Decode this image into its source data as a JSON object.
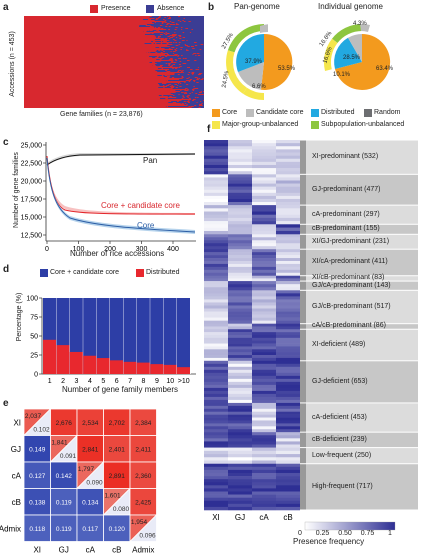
{
  "panel_labels": [
    "a",
    "b",
    "c",
    "d",
    "e",
    "f"
  ],
  "panel_a": {
    "legend": [
      {
        "label": "Presence",
        "color": "#d8282f"
      },
      {
        "label": "Absence",
        "color": "#3b3d94"
      }
    ],
    "ylabel": "Accessions (n = 453)",
    "xlabel": "Gene families (n = 23,876)"
  },
  "panel_b": {
    "titles": [
      "Pan-genome",
      "Individual genome"
    ],
    "pan_labels": [
      "27.5%",
      "24.5%",
      "37.9%",
      "6.6%",
      "53.5%"
    ],
    "ind_labels": [
      "4.3%",
      "16.6%",
      "16.6%",
      "28.5%",
      "10.1%",
      "63.4%"
    ],
    "legend": [
      {
        "label": "Core",
        "color": "#f39a1e"
      },
      {
        "label": "Candidate core",
        "color": "#bdbdbd"
      },
      {
        "label": "Distributed",
        "color": "#22a9e1"
      },
      {
        "label": "Random",
        "color": "#6d6e71"
      },
      {
        "label": "Major-group-unbalanced",
        "color": "#f5e64b"
      },
      {
        "label": "Subpopulation-unbalanced",
        "color": "#8dc63f"
      }
    ]
  },
  "panel_c": {
    "ylabel": "Number of gene families",
    "xlabel": "Number of rice accessions",
    "yticks": [
      "12,500",
      "15,000",
      "17,500",
      "20,000",
      "22,500",
      "25,000"
    ],
    "xticks": [
      "0",
      "100",
      "200",
      "300",
      "400"
    ],
    "series_labels": [
      "Pan",
      "Core + candidate core",
      "Core"
    ]
  },
  "panel_d": {
    "legend": [
      {
        "label": "Core + candidate core",
        "color": "#2d3ea6"
      },
      {
        "label": "Distributed",
        "color": "#e8282e"
      }
    ],
    "ylabel": "Percentage (%)",
    "xlabel": "Number of gene family members",
    "yticks": [
      "0",
      "25",
      "50",
      "75",
      "100"
    ],
    "xticks": [
      "1",
      "2",
      "3",
      "4",
      "5",
      "6",
      "7",
      "8",
      "9",
      "10",
      ">10"
    ]
  },
  "panel_e": {
    "labels": [
      "XI",
      "GJ",
      "cA",
      "cB",
      "Admix"
    ],
    "upper": [
      [
        "2,037",
        "2,676",
        "2,534",
        "2,702",
        "2,384"
      ],
      [
        "1,841",
        "2,841",
        "2,401",
        "2,411"
      ],
      [
        "1,797",
        "2,891",
        "2,360"
      ],
      [
        "1,601",
        "2,425"
      ],
      [
        "1,954"
      ]
    ],
    "lower": [
      [
        "0.102"
      ],
      [
        "0.149",
        "0.091"
      ],
      [
        "0.127",
        "0.142",
        "0.090"
      ],
      [
        "0.138",
        "0.119",
        "0.134",
        "0.080"
      ],
      [
        "0.118",
        "0.119",
        "0.117",
        "0.120",
        "0.096"
      ]
    ]
  },
  "panel_f": {
    "categories": [
      "XI-predominant (532)",
      "GJ-predominant (477)",
      "cA-predominant (297)",
      "cB-predominant (155)",
      "XI/GJ-predominant (231)",
      "XI/cA-predominant (411)",
      "XI/cB-predominant (83)",
      "GJ/cA-predominant (143)",
      "GJ/cB-predominant (517)",
      "cA/cB-predominant (86)",
      "XI-deficient (489)",
      "GJ-deficient (653)",
      "cA-deficient (453)",
      "cB-deficient (239)",
      "Low-frequent (250)",
      "High-frequent (717)"
    ],
    "counts": [
      532,
      477,
      297,
      155,
      231,
      411,
      83,
      143,
      517,
      86,
      489,
      653,
      453,
      239,
      250,
      717
    ],
    "columns": [
      "XI",
      "GJ",
      "cA",
      "cB"
    ],
    "colorbar_label": "Presence frequency",
    "colorbar_ticks": [
      "0",
      "0.25",
      "0.50",
      "0.75",
      "1"
    ]
  }
}
